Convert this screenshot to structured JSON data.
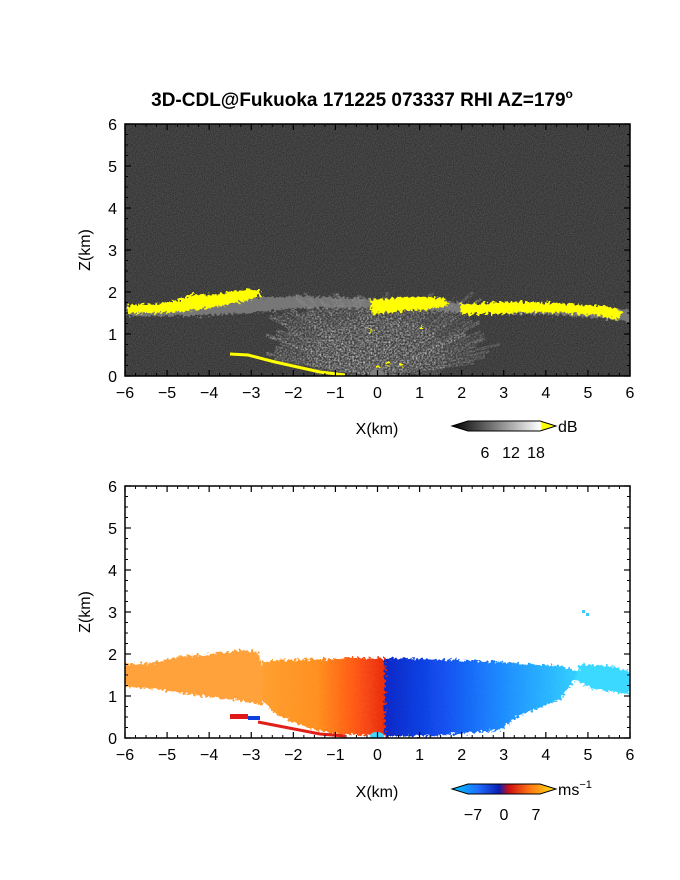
{
  "chart_data": [
    {
      "type": "heatmap",
      "title": "3D-CDL@Fukuoka 171225 073337 RHI AZ=179",
      "title_superscript": "o",
      "xlabel": "X(km)",
      "ylabel": "Z(km)",
      "xlim": [
        -6,
        6
      ],
      "ylim": [
        0,
        6
      ],
      "x_ticks": [
        "-6",
        "-5",
        "-4",
        "-3",
        "-2",
        "-1",
        "0",
        "1",
        "2",
        "3",
        "4",
        "5",
        "6"
      ],
      "y_ticks": [
        "0",
        "1",
        "2",
        "3",
        "4",
        "5",
        "6"
      ],
      "background": "#1a1a1a",
      "colormap": "grayscale with yellow above 18 dB",
      "colorbar": {
        "label": "dB",
        "ticks": [
          "6",
          "12",
          "18"
        ],
        "range": [
          0,
          21
        ],
        "overflow_color": "#ffff00"
      },
      "features": [
        {
          "name": "cloud base layer",
          "x_range": [
            -6,
            6
          ],
          "z_approx": 1.7
        },
        {
          "name": "fan of radial echoes",
          "origin_x": 0,
          "origin_z": 0,
          "x_range": [
            -3,
            3
          ],
          "z_top": 2.0
        },
        {
          "name": "ground clutter line",
          "from": [
            -3.5,
            0.5
          ],
          "to": [
            -1.2,
            0.0
          ]
        }
      ]
    },
    {
      "type": "heatmap",
      "xlabel": "X(km)",
      "ylabel": "Z(km)",
      "xlim": [
        -6,
        6
      ],
      "ylim": [
        0,
        6
      ],
      "x_ticks": [
        "-6",
        "-5",
        "-4",
        "-3",
        "-2",
        "-1",
        "0",
        "1",
        "2",
        "3",
        "4",
        "5",
        "6"
      ],
      "y_ticks": [
        "0",
        "1",
        "2",
        "3",
        "4",
        "5",
        "6"
      ],
      "background": "#ffffff",
      "colormap": "cyan-blue-red-orange-yellow diverging",
      "colorbar": {
        "label": "ms",
        "label_superscript": "−1",
        "ticks": [
          "−7",
          "0",
          "7"
        ],
        "range": [
          -10,
          10
        ]
      },
      "features": [
        {
          "name": "positive radial velocity region",
          "x_range": [
            -6,
            0.2
          ],
          "z_top": 2.0,
          "value_range": [
            2,
            8
          ]
        },
        {
          "name": "negative radial velocity region",
          "x_range": [
            0.2,
            6
          ],
          "z_top": 1.9,
          "value_range": [
            -9,
            -3
          ]
        }
      ]
    }
  ]
}
